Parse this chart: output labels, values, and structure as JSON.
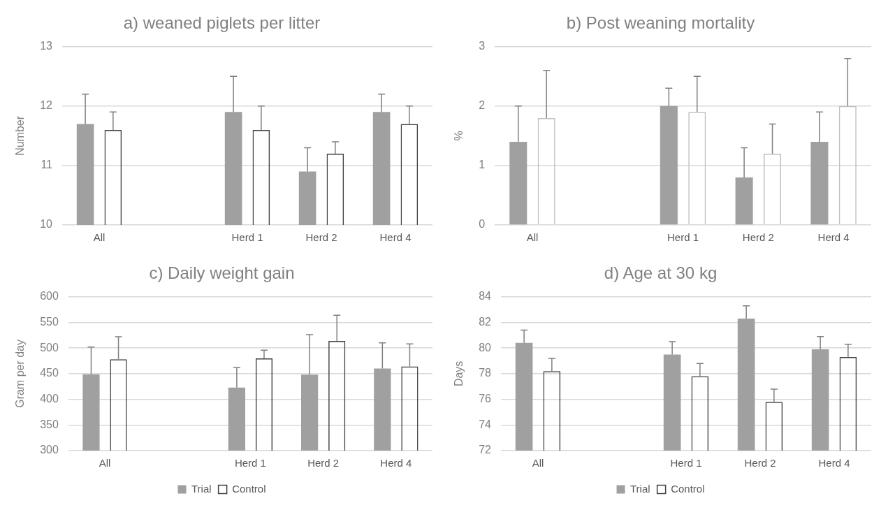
{
  "chart_data": [
    {
      "type": "bar",
      "title": "a) weaned piglets per litter",
      "ylabel": "Number",
      "categories": [
        "All",
        null,
        "Herd 1",
        "Herd 2",
        "Herd 4"
      ],
      "series": [
        {
          "color": "#a0a0a0",
          "values": [
            11.7,
            null,
            11.9,
            10.9,
            11.9
          ],
          "errors": [
            0.5,
            null,
            0.6,
            0.4,
            0.3
          ]
        },
        {
          "color": "#404040",
          "values": [
            11.6,
            null,
            11.6,
            11.2,
            11.7
          ],
          "errors": [
            0.3,
            null,
            0.4,
            0.2,
            0.3
          ]
        }
      ],
      "ylim": [
        10,
        13
      ],
      "yticks": [
        10,
        11,
        12,
        13
      ],
      "grid": "y",
      "legend": false
    },
    {
      "type": "bar",
      "title": "b) Post weaning mortality",
      "ylabel": "%",
      "categories": [
        "All",
        null,
        "Herd 1",
        "Herd 2",
        "Herd 4"
      ],
      "series": [
        {
          "color": "#a0a0a0",
          "values": [
            1.4,
            null,
            2.0,
            0.8,
            1.4
          ],
          "errors": [
            0.6,
            null,
            0.3,
            0.5,
            0.5
          ]
        },
        {
          "color": "#bfbfbf",
          "values": [
            1.8,
            null,
            1.9,
            1.2,
            2.0
          ],
          "errors": [
            0.8,
            null,
            0.6,
            0.5,
            0.8
          ]
        }
      ],
      "ylim": [
        0,
        3
      ],
      "yticks": [
        0,
        1,
        2,
        3
      ],
      "grid": "y",
      "legend": false
    },
    {
      "type": "bar",
      "title": "c) Daily weight gain",
      "ylabel": "Gram per day",
      "categories": [
        "All",
        null,
        "Herd 1",
        "Herd 2",
        "Herd 4"
      ],
      "series": [
        {
          "name": "Trial",
          "color": "#a0a0a0",
          "values": [
            449,
            null,
            423,
            448,
            460
          ],
          "errors": [
            53,
            null,
            39,
            78,
            50
          ]
        },
        {
          "name": "Control",
          "color": "#404040",
          "values": [
            478,
            null,
            480,
            514,
            464
          ],
          "errors": [
            44,
            null,
            16,
            50,
            44
          ]
        }
      ],
      "ylim": [
        300,
        600
      ],
      "yticks": [
        300,
        350,
        400,
        450,
        500,
        550,
        600
      ],
      "grid": "y",
      "legend": "bottom"
    },
    {
      "type": "bar",
      "title": "d) Age at 30 kg",
      "ylabel": "Days",
      "categories": [
        "All",
        null,
        "Herd 1",
        "Herd 2",
        "Herd 4"
      ],
      "series": [
        {
          "name": "Trial",
          "color": "#a0a0a0",
          "values": [
            80.4,
            null,
            79.5,
            82.3,
            79.9
          ],
          "errors": [
            1.0,
            null,
            1.0,
            1.0,
            1.0
          ]
        },
        {
          "name": "Control",
          "color": "#404040",
          "values": [
            78.2,
            null,
            77.8,
            75.8,
            79.3
          ],
          "errors": [
            1.0,
            null,
            1.0,
            1.0,
            1.0
          ]
        }
      ],
      "ylim": [
        72,
        84
      ],
      "yticks": [
        72,
        74,
        76,
        78,
        80,
        82,
        84
      ],
      "grid": "y",
      "legend": "bottom"
    }
  ]
}
